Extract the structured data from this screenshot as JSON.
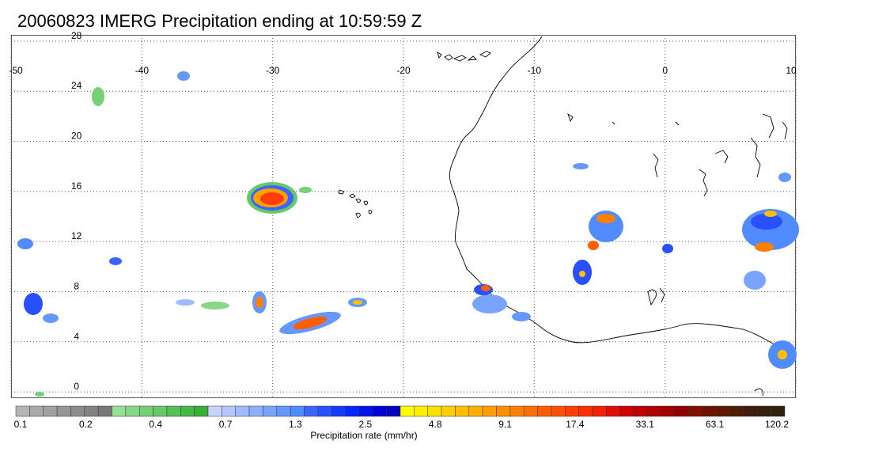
{
  "title": "20060823 IMERG Precipitation ending at 10:59:59 Z",
  "map": {
    "lon_range": [
      -50,
      10
    ],
    "lat_range": [
      -0.5,
      28.5
    ],
    "lon_ticks": [
      -50,
      -40,
      -30,
      -20,
      -10,
      0,
      10
    ],
    "lon_labels": [
      "-50",
      "-40",
      "-30",
      "-20",
      "-10",
      "0",
      "10"
    ],
    "lat_ticks": [
      0,
      4,
      8,
      12,
      16,
      20,
      24,
      28
    ],
    "lat_labels": [
      "0",
      "4",
      "8",
      "12",
      "16",
      "20",
      "24",
      "28"
    ],
    "gridlines": "dotted",
    "coastline_color": "#000000"
  },
  "colorbar": {
    "label": "Precipitation rate (mm/hr)",
    "tick_labels": [
      "0.1",
      "0.2",
      "0.4",
      "0.7",
      "1.3",
      "2.5",
      "4.8",
      "9.1",
      "17.4",
      "33.1",
      "63.1",
      "120.2"
    ],
    "colors": [
      "#b4b4b4",
      "#aaaaaa",
      "#a0a0a0",
      "#969696",
      "#8c8c8c",
      "#828282",
      "#787878",
      "#96e096",
      "#86d886",
      "#76d076",
      "#66c866",
      "#56c056",
      "#46b846",
      "#36b036",
      "#c8d4ff",
      "#b4c8ff",
      "#a0bcff",
      "#8cb0ff",
      "#78a4ff",
      "#6498ff",
      "#508cff",
      "#3c64ff",
      "#2850ff",
      "#143cff",
      "#0028ff",
      "#0014e6",
      "#0000d2",
      "#0000be",
      "#ffff00",
      "#ffef00",
      "#ffdf00",
      "#ffcf00",
      "#ffbf00",
      "#ffaf00",
      "#ff9f00",
      "#ff8f00",
      "#ff7f00",
      "#ff6f00",
      "#ff5f00",
      "#ff4f00",
      "#ff3f00",
      "#ff2f00",
      "#f02000",
      "#e01000",
      "#d00000",
      "#c00000",
      "#b00000",
      "#a00000",
      "#900000",
      "#801000",
      "#701400",
      "#601800",
      "#501c00",
      "#401c10",
      "#382010",
      "#302010"
    ]
  }
}
